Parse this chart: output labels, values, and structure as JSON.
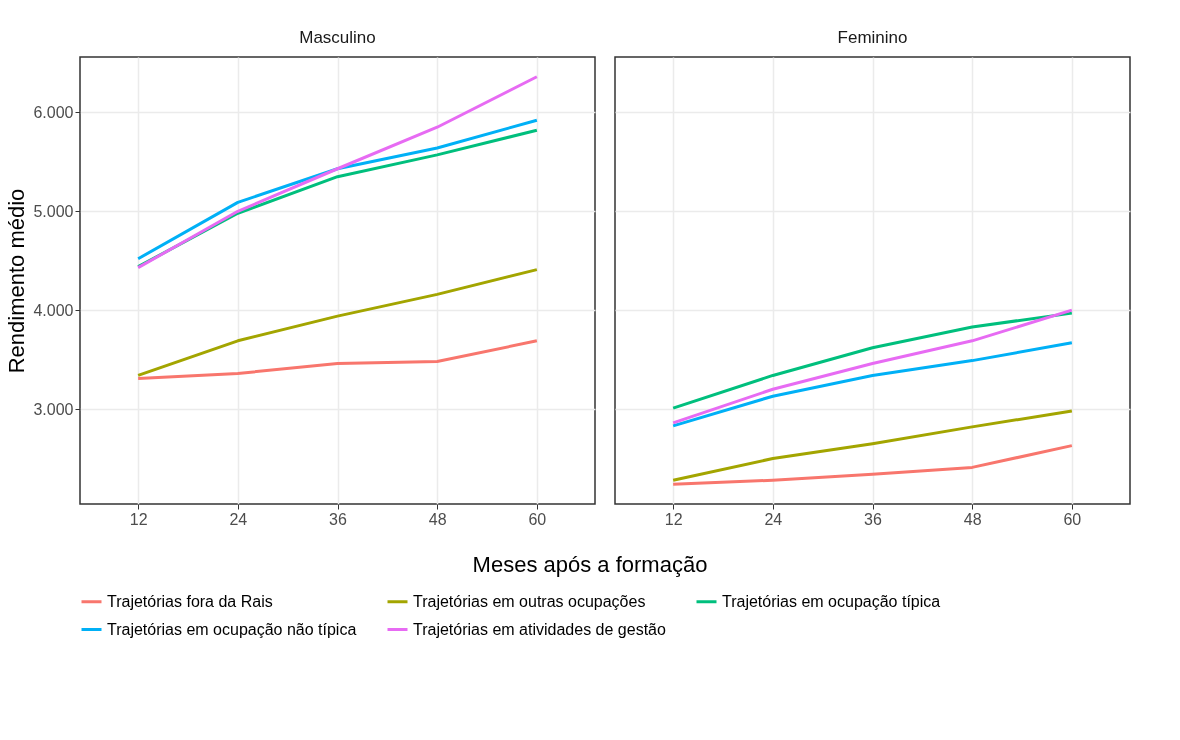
{
  "chart_data": [
    {
      "type": "line",
      "title": "Masculino",
      "xlabel": "Meses após a formação",
      "ylabel": "Rendimento médio",
      "x": [
        12,
        24,
        36,
        48,
        60
      ],
      "xlim": [
        5,
        67
      ],
      "xticks": [
        12,
        24,
        36,
        48,
        60
      ],
      "ylim": [
        2040,
        6560
      ],
      "yticks": [
        {
          "value": 3000,
          "label": "3.000"
        },
        {
          "value": 4000,
          "label": "4.000"
        },
        {
          "value": 5000,
          "label": "5.000"
        },
        {
          "value": 6000,
          "label": "6.000"
        }
      ],
      "grid": true,
      "legend": "bottom",
      "series": [
        {
          "name": "Trajetórias fora da Rais",
          "color": "#f8766d",
          "values": [
            3310,
            3360,
            3460,
            3480,
            3690
          ]
        },
        {
          "name": "Trajetórias em outras ocupações",
          "color": "#a3a500",
          "values": [
            3340,
            3690,
            3940,
            4160,
            4410
          ]
        },
        {
          "name": "Trajetórias em ocupação típica",
          "color": "#00bf7d",
          "values": [
            4440,
            4980,
            5350,
            5570,
            5820
          ]
        },
        {
          "name": "Trajetórias em ocupação não típica",
          "color": "#00b0f6",
          "values": [
            4520,
            5090,
            5430,
            5640,
            5920
          ]
        },
        {
          "name": "Trajetórias em atividades de gestão",
          "color": "#e76bf3",
          "values": [
            4430,
            5000,
            5430,
            5850,
            6360
          ]
        }
      ]
    },
    {
      "type": "line",
      "title": "Feminino",
      "x": [
        12,
        24,
        36,
        48,
        60
      ],
      "xlim": [
        5,
        67
      ],
      "xticks": [
        12,
        24,
        36,
        48,
        60
      ],
      "ylim": [
        2040,
        6560
      ],
      "yticks": [
        3000,
        4000,
        5000,
        6000
      ],
      "tick_labels": "x",
      "grid": true,
      "legend": "bottom",
      "series": [
        {
          "name": "Trajetórias fora da Rais",
          "color": "#f8766d",
          "values": [
            2240,
            2280,
            2340,
            2410,
            2630
          ]
        },
        {
          "name": "Trajetórias em outras ocupações",
          "color": "#a3a500",
          "values": [
            2280,
            2500,
            2650,
            2820,
            2980
          ]
        },
        {
          "name": "Trajetórias em ocupação típica",
          "color": "#00bf7d",
          "values": [
            3010,
            3340,
            3620,
            3830,
            3970
          ]
        },
        {
          "name": "Trajetórias em ocupação não típica",
          "color": "#00b0f6",
          "values": [
            2830,
            3130,
            3340,
            3490,
            3670
          ]
        },
        {
          "name": "Trajetórias em atividades de gestão",
          "color": "#e76bf3",
          "values": [
            2860,
            3200,
            3460,
            3690,
            4000
          ]
        }
      ]
    }
  ]
}
